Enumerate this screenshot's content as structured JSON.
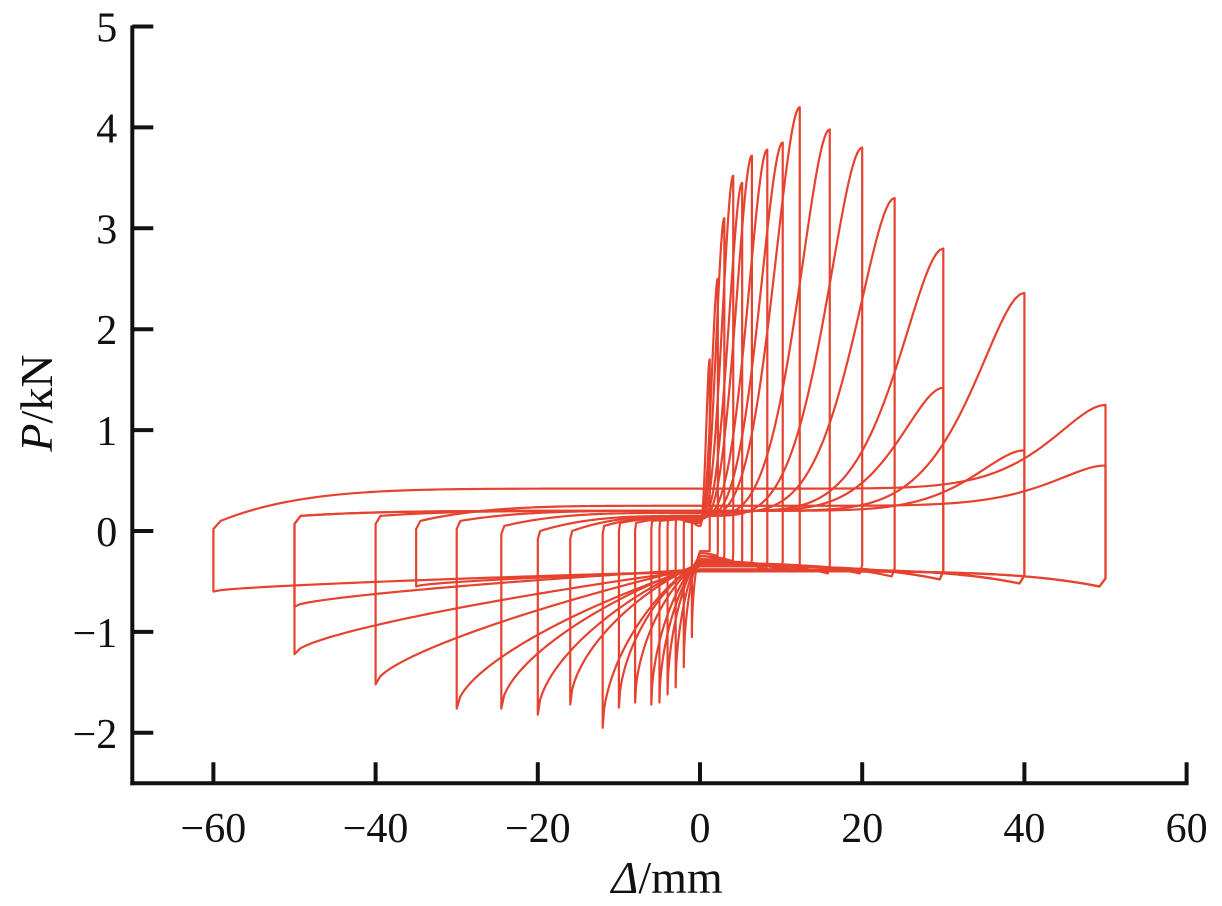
{
  "chart_data": {
    "type": "line",
    "xlabel": "Δ/mm",
    "ylabel": "P/kN",
    "xlim": [
      -70,
      60
    ],
    "ylim": [
      -2.5,
      5
    ],
    "x_tick_labels": [
      "−60",
      "−40",
      "−20",
      "0",
      "20",
      "40",
      "60"
    ],
    "y_tick_labels": [
      "5",
      "4",
      "3",
      "2",
      "1",
      "0",
      "−1",
      "−2"
    ],
    "grid": false,
    "legend": "none",
    "line_color": "#E5432F",
    "axis_color": "#111111",
    "loops": [
      {
        "x_max": 1.2,
        "y_max": 1.7,
        "x_min": -1.0,
        "y_min": -1.05,
        "y_unload_pos": -0.2,
        "y_unload_neg": 0.1,
        "y0_upper": 0.05,
        "y0_lower": -0.2
      },
      {
        "x_max": 2.2,
        "y_max": 2.5,
        "x_min": -2.0,
        "y_min": -1.35,
        "y_unload_pos": -0.25,
        "y_unload_neg": 0.1,
        "y0_upper": 0.08,
        "y0_lower": -0.22
      },
      {
        "x_max": 3.0,
        "y_max": 3.1,
        "x_min": -3.0,
        "y_min": -1.55,
        "y_unload_pos": -0.3,
        "y_unload_neg": 0.12,
        "y0_upper": 0.1,
        "y0_lower": -0.25
      },
      {
        "x_max": 4.1,
        "y_max": 3.52,
        "x_min": -4.0,
        "y_min": -1.62,
        "y_unload_pos": -0.3,
        "y_unload_neg": 0.12,
        "y0_upper": 0.12,
        "y0_lower": -0.25
      },
      {
        "x_max": 5.2,
        "y_max": 3.45,
        "x_min": -5.0,
        "y_min": -1.7,
        "y_unload_pos": -0.35,
        "y_unload_neg": 0.1,
        "y0_upper": 0.12,
        "y0_lower": -0.28
      },
      {
        "x_max": 6.4,
        "y_max": 3.72,
        "x_min": -6.0,
        "y_min": -1.72,
        "y_unload_pos": -0.35,
        "y_unload_neg": 0.1,
        "y0_upper": 0.12,
        "y0_lower": -0.28
      },
      {
        "x_max": 8.3,
        "y_max": 3.78,
        "x_min": -8.0,
        "y_min": -1.7,
        "y_unload_pos": -0.38,
        "y_unload_neg": 0.08,
        "y0_upper": 0.14,
        "y0_lower": -0.3
      },
      {
        "x_max": 10.2,
        "y_max": 3.85,
        "x_min": -10.0,
        "y_min": -1.75,
        "y_unload_pos": -0.38,
        "y_unload_neg": 0.08,
        "y0_upper": 0.14,
        "y0_lower": -0.3
      },
      {
        "x_max": 12.3,
        "y_max": 4.2,
        "x_min": -12.0,
        "y_min": -1.95,
        "y_unload_pos": -0.4,
        "y_unload_neg": 0.05,
        "y0_upper": 0.15,
        "y0_lower": -0.3
      },
      {
        "x_max": 16.0,
        "y_max": 3.98,
        "x_min": -16.0,
        "y_min": -1.72,
        "y_unload_pos": -0.42,
        "y_unload_neg": 0.0,
        "y0_upper": 0.15,
        "y0_lower": -0.32
      },
      {
        "x_max": 20.0,
        "y_max": 3.8,
        "x_min": -20.0,
        "y_min": -1.82,
        "y_unload_pos": -0.42,
        "y_unload_neg": 0.0,
        "y0_upper": 0.15,
        "y0_lower": -0.32
      },
      {
        "x_max": 24.0,
        "y_max": 3.3,
        "x_min": -24.5,
        "y_min": -1.76,
        "y_unload_pos": -0.45,
        "y_unload_neg": 0.05,
        "y0_upper": 0.18,
        "y0_lower": -0.33
      },
      {
        "x_max": 30.0,
        "y_max": 2.8,
        "x_min": -30.0,
        "y_min": -1.76,
        "y_unload_pos": -0.48,
        "y_unload_neg": 0.1,
        "y0_upper": 0.2,
        "y0_lower": -0.35
      },
      {
        "x_max": 30.0,
        "y_max": 1.42,
        "x_min": -40.0,
        "y_min": -1.52,
        "y_unload_pos": -0.48,
        "y_unload_neg": 0.15,
        "y0_upper": 0.2,
        "y0_lower": -0.35
      },
      {
        "x_max": 40.0,
        "y_max": 2.36,
        "x_min": -50.0,
        "y_min": -1.22,
        "y_unload_pos": -0.52,
        "y_unload_neg": 0.15,
        "y0_upper": 0.2,
        "y0_lower": -0.38
      },
      {
        "x_max": 40.0,
        "y_max": 0.8,
        "x_min": -50.0,
        "y_min": -0.75,
        "y_unload_pos": -0.52,
        "y_unload_neg": 0.15,
        "y0_upper": 0.2,
        "y0_lower": -0.38
      },
      {
        "x_max": 50.0,
        "y_max": 1.25,
        "x_min": -60.0,
        "y_min": -0.6,
        "y_unload_pos": -0.55,
        "y_unload_neg": 0.1,
        "y0_upper": 0.42,
        "y0_lower": -0.4
      },
      {
        "x_max": 50.0,
        "y_max": 0.65,
        "x_min": -35.0,
        "y_min": -0.55,
        "y_unload_pos": -0.55,
        "y_unload_neg": 0.1,
        "y0_upper": 0.25,
        "y0_lower": -0.4
      }
    ]
  }
}
